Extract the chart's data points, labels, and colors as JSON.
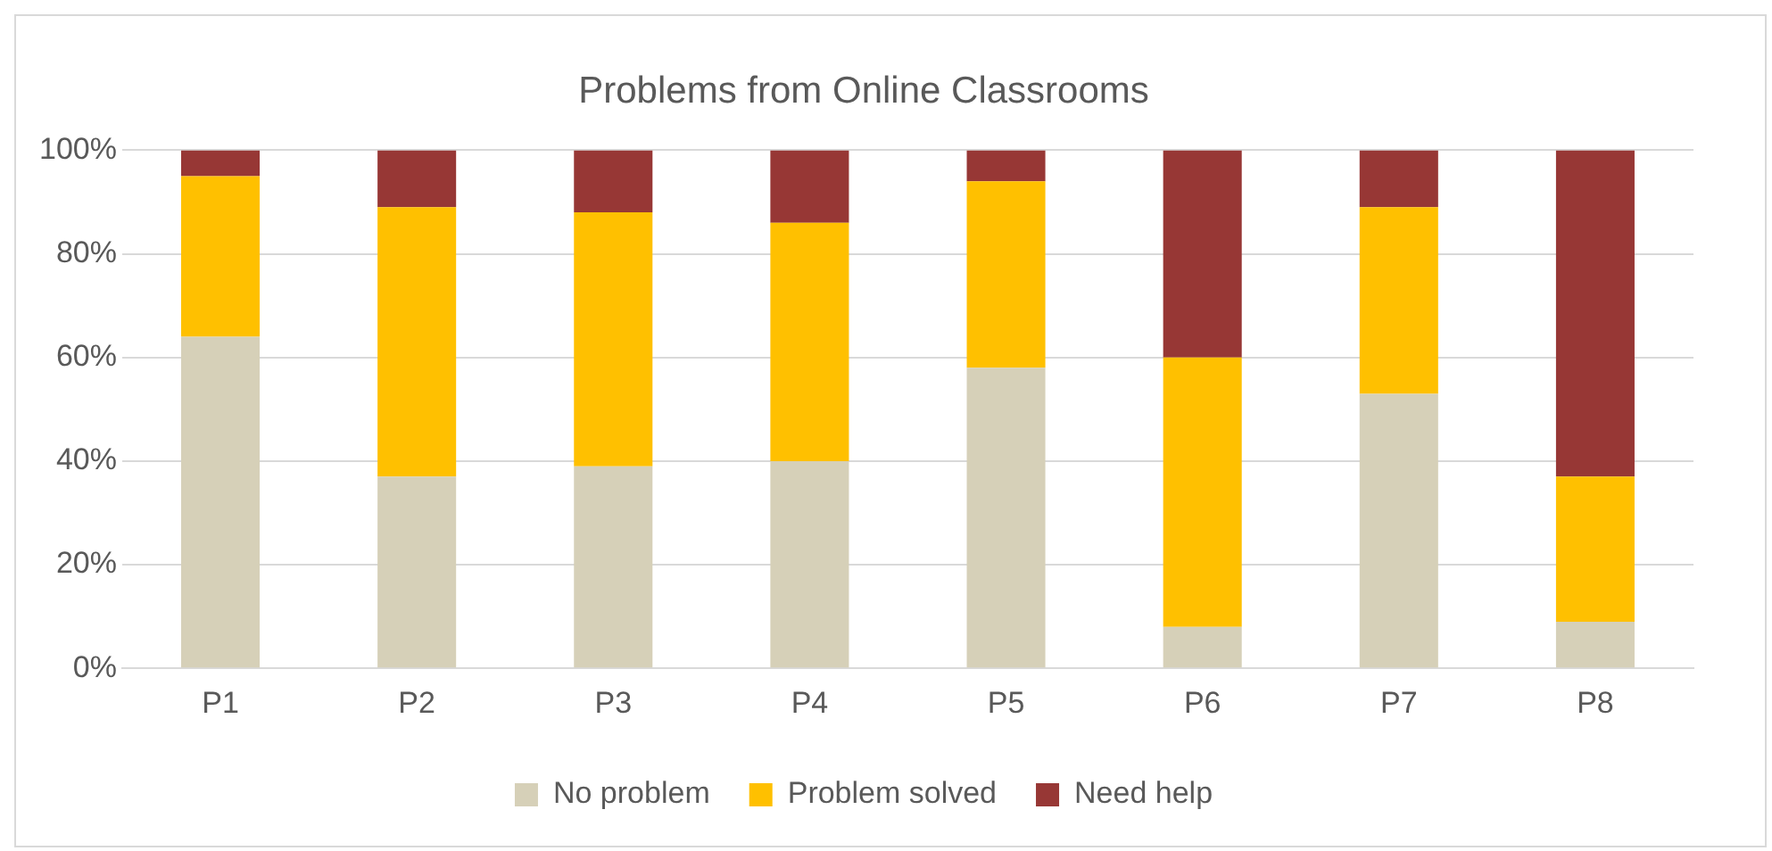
{
  "chart_data": {
    "type": "bar",
    "title": "Problems from Online Classrooms",
    "stacked": true,
    "categories": [
      "P1",
      "P2",
      "P3",
      "P4",
      "P5",
      "P6",
      "P7",
      "P8"
    ],
    "series": [
      {
        "name": "No problem",
        "color": "#d6d0b8",
        "values": [
          64,
          37,
          39,
          40,
          58,
          8,
          53,
          9
        ]
      },
      {
        "name": "Problem solved",
        "color": "#ffc000",
        "values": [
          31,
          52,
          49,
          46,
          36,
          52,
          36,
          28
        ]
      },
      {
        "name": "Need help",
        "color": "#973735",
        "values": [
          5,
          11,
          12,
          14,
          6,
          40,
          11,
          63
        ]
      }
    ],
    "ylim": [
      0,
      100
    ],
    "yticks": [
      {
        "value": 0,
        "label": "0%"
      },
      {
        "value": 20,
        "label": "20%"
      },
      {
        "value": 40,
        "label": "40%"
      },
      {
        "value": 60,
        "label": "60%"
      },
      {
        "value": 80,
        "label": "80%"
      },
      {
        "value": 100,
        "label": "100%"
      }
    ],
    "grid": "y",
    "legend": "bottom"
  }
}
